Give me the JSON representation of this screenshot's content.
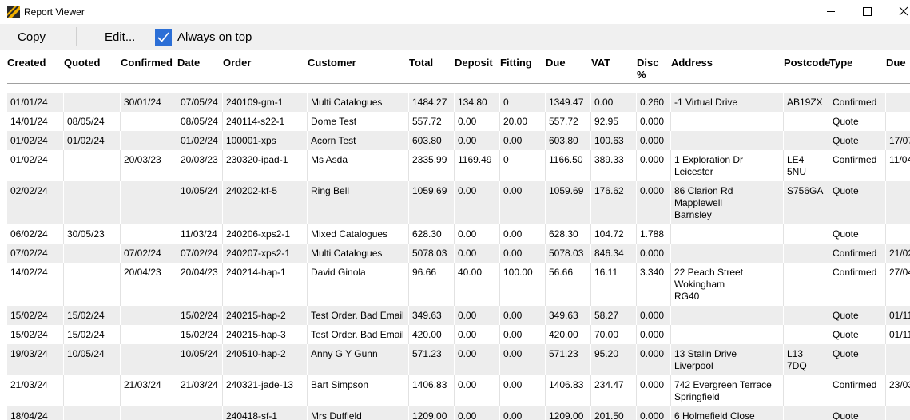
{
  "window": {
    "title": "Report Viewer"
  },
  "toolbar": {
    "copy": "Copy",
    "edit": "Edit...",
    "always_on_top": "Always on top",
    "always_on_top_checked": true
  },
  "table": {
    "headers": [
      "Created",
      "Quoted",
      "Confirmed",
      "Date",
      "Order",
      "Customer",
      "Total",
      "Deposit",
      "Fitting",
      "Due",
      "VAT",
      "Disc %",
      "Address",
      "Postcode",
      "Type",
      "Due"
    ],
    "rows": [
      [
        "01/01/24",
        null,
        "30/01/24",
        "07/05/24",
        "240109-gm-1",
        "Multi Catalogues",
        "1484.27",
        "134.80",
        "0",
        "1349.47",
        "0.00",
        "0.260",
        "-1 Virtual Drive",
        "AB19ZX",
        "Confirmed",
        null
      ],
      [
        "14/01/24",
        "08/05/24",
        null,
        "08/05/24",
        "240114-s22-1",
        "Dome Test",
        "557.72",
        "0.00",
        "20.00",
        "557.72",
        "92.95",
        "0.000",
        null,
        null,
        "Quote",
        null
      ],
      [
        "01/02/24",
        "01/02/24",
        null,
        "01/02/24",
        "100001-xps",
        "Acorn Test",
        "603.80",
        "0.00",
        "0.00",
        "603.80",
        "100.63",
        "0.000",
        null,
        null,
        "Quote",
        "17/07"
      ],
      [
        "01/02/24",
        null,
        "20/03/23",
        "20/03/23",
        "230320-ipad-1",
        "Ms Asda",
        "2335.99",
        "1169.49",
        "0",
        "1166.50",
        "389.33",
        "0.000",
        "1 Exploration Dr\nLeicester",
        "LE4 5NU",
        "Confirmed",
        "11/04"
      ],
      [
        "02/02/24",
        null,
        null,
        "10/05/24",
        "240202-kf-5",
        "Ring Bell",
        "1059.69",
        "0.00",
        "0.00",
        "1059.69",
        "176.62",
        "0.000",
        "86 Clarion Rd\nMapplewell\nBarnsley",
        "S756GA",
        "Quote",
        null
      ],
      [
        "06/02/24",
        "30/05/23",
        null,
        "11/03/24",
        "240206-xps2-1",
        "Mixed Catalogues",
        "628.30",
        "0.00",
        "0.00",
        "628.30",
        "104.72",
        "1.788",
        null,
        null,
        "Quote",
        null
      ],
      [
        "07/02/24",
        null,
        "07/02/24",
        "07/02/24",
        "240207-xps2-1",
        "Multi Catalogues",
        "5078.03",
        "0.00",
        "0.00",
        "5078.03",
        "846.34",
        "0.000",
        null,
        null,
        "Confirmed",
        "21/02"
      ],
      [
        "14/02/24",
        null,
        "20/04/23",
        "20/04/23",
        "240214-hap-1",
        "David Ginola",
        "96.66",
        "40.00",
        "100.00",
        "56.66",
        "16.11",
        "3.340",
        "22 Peach Street\nWokingham\nRG40",
        null,
        "Confirmed",
        "27/04"
      ],
      [
        "15/02/24",
        "15/02/24",
        null,
        "15/02/24",
        "240215-hap-2",
        "Test Order. Bad Email",
        "349.63",
        "0.00",
        "0.00",
        "349.63",
        "58.27",
        "0.000",
        null,
        null,
        "Quote",
        "01/11"
      ],
      [
        "15/02/24",
        "15/02/24",
        null,
        "15/02/24",
        "240215-hap-3",
        "Test Order. Bad Email",
        "420.00",
        "0.00",
        "0.00",
        "420.00",
        "70.00",
        "0.000",
        null,
        null,
        "Quote",
        "01/11"
      ],
      [
        "19/03/24",
        "10/05/24",
        null,
        "10/05/24",
        "240510-hap-2",
        "Anny G Y Gunn",
        "571.23",
        "0.00",
        "0.00",
        "571.23",
        "95.20",
        "0.000",
        "13 Stalin Drive\nLiverpool",
        "L13 7DQ",
        "Quote",
        null
      ],
      [
        "21/03/24",
        null,
        "21/03/24",
        "21/03/24",
        "240321-jade-13",
        "Bart Simpson",
        "1406.83",
        "0.00",
        "0.00",
        "1406.83",
        "234.47",
        "0.000",
        "742 Evergreen Terrace\nSpringfield",
        null,
        "Confirmed",
        "23/03"
      ],
      [
        "18/04/24",
        null,
        null,
        null,
        "240418-sf-1",
        "Mrs Duffield",
        "1209.00",
        "0.00",
        "0.00",
        "1209.00",
        "201.50",
        "0.000",
        "6 Holmefield Close",
        null,
        "Quote",
        null
      ]
    ]
  }
}
